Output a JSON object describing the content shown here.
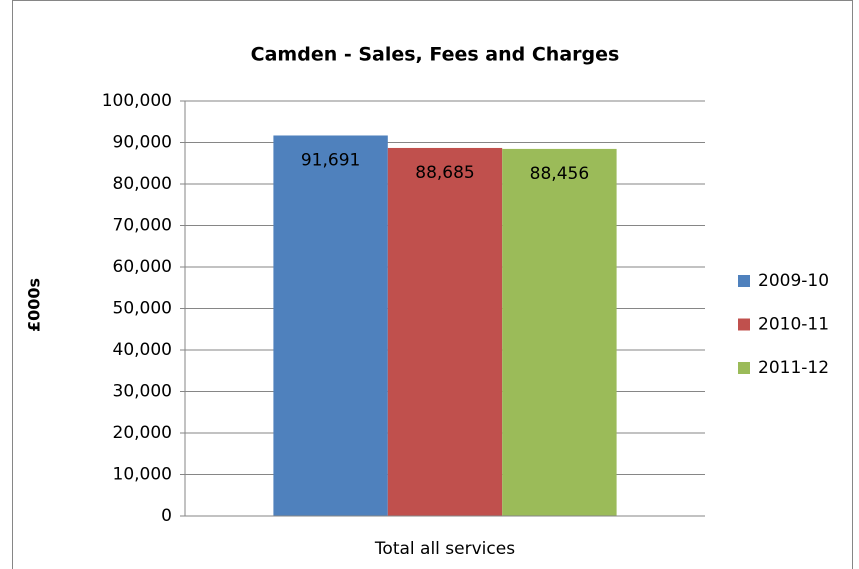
{
  "chart_data": {
    "type": "bar",
    "title": "Camden - Sales, Fees and Charges",
    "y_label": "£000s",
    "categories": [
      "Total all services"
    ],
    "series": [
      {
        "name": "2009-10",
        "color": "#4f81bd",
        "values": [
          91691
        ],
        "value_labels": [
          "91,691"
        ]
      },
      {
        "name": "2010-11",
        "color": "#c0504d",
        "values": [
          88685
        ],
        "value_labels": [
          "88,685"
        ]
      },
      {
        "name": "2011-12",
        "color": "#9bbb59",
        "values": [
          88456
        ],
        "value_labels": [
          "88,456"
        ]
      }
    ],
    "ylim": [
      0,
      100000
    ],
    "yticks": [
      0,
      {
        "value": 10000,
        "label": "10,000"
      },
      {
        "value": 20000,
        "label": "20,000"
      },
      {
        "value": 30000,
        "label": "30,000"
      },
      {
        "value": 40000,
        "label": "40,000"
      },
      {
        "value": 50000,
        "label": "50,000"
      },
      {
        "value": 60000,
        "label": "60,000"
      },
      {
        "value": 70000,
        "label": "70,000"
      },
      {
        "value": 80000,
        "label": "80,000"
      },
      {
        "value": 90000,
        "label": "90,000"
      },
      {
        "value": 100000,
        "label": "100,000"
      }
    ],
    "grid": true,
    "legend": "right"
  }
}
